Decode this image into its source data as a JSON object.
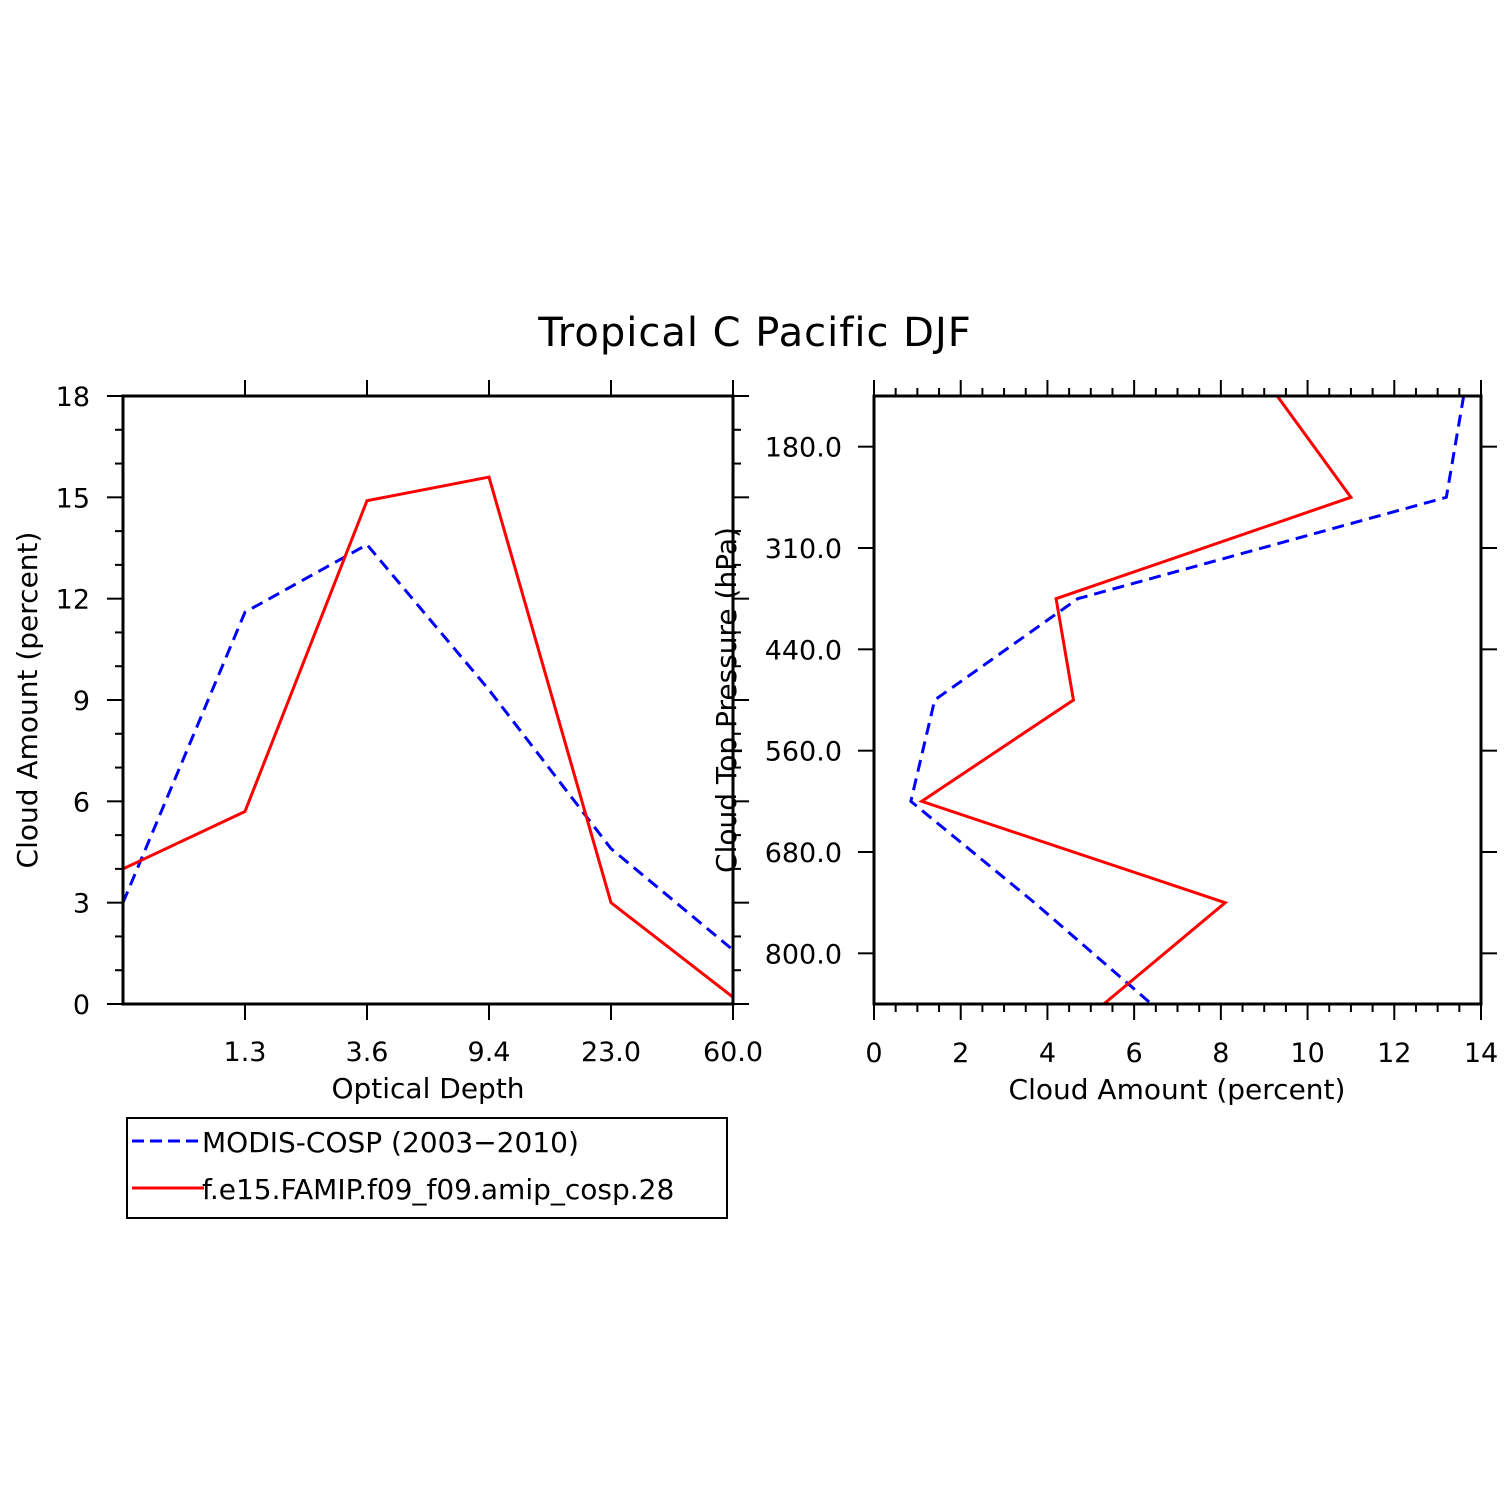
{
  "title": "Tropical C Pacific DJF",
  "colors": {
    "obs": "#0000ff",
    "model": "#ff0000",
    "axis": "#000000"
  },
  "chart_data": [
    {
      "type": "line",
      "xlabel": "Optical Depth",
      "ylabel": "Cloud Amount (percent)",
      "x_tick_labels": [
        "1.3",
        "3.6",
        "9.4",
        "23.0",
        "60.0"
      ],
      "y_tick_labels": [
        "0",
        "3",
        "6",
        "9",
        "12",
        "15",
        "18"
      ],
      "ylim": [
        0,
        18
      ],
      "x_bins": [
        0,
        1,
        2,
        3,
        4,
        5
      ],
      "series": [
        {
          "name": "MODIS-COSP (2003-2010)",
          "style": "dashed",
          "color": "obs",
          "values": [
            3.0,
            11.6,
            13.6,
            9.3,
            4.6,
            1.6
          ]
        },
        {
          "name": "f.e15.FAMIP.f09_f09.amip_cosp.28",
          "style": "solid",
          "color": "model",
          "values": [
            4.0,
            5.7,
            14.9,
            15.6,
            3.0,
            0.2
          ]
        }
      ]
    },
    {
      "type": "line",
      "xlabel": "Cloud Amount (percent)",
      "ylabel": "Cloud Top Pressure (hPa)",
      "x_tick_labels": [
        "0",
        "2",
        "4",
        "6",
        "8",
        "10",
        "12",
        "14"
      ],
      "y_tick_labels": [
        "180.0",
        "310.0",
        "440.0",
        "560.0",
        "680.0",
        "800.0"
      ],
      "xlim": [
        0,
        14
      ],
      "pressure_levels": [
        "top",
        "180.0",
        "310.0",
        "440.0",
        "560.0",
        "680.0",
        "800.0",
        "bottom"
      ],
      "series": [
        {
          "name": "MODIS-COSP (2003-2010)",
          "style": "dashed",
          "color": "obs",
          "values": [
            13.6,
            13.2,
            4.7,
            1.4,
            0.85,
            3.7,
            6.4
          ]
        },
        {
          "name": "f.e15.FAMIP.f09_f09.amip_cosp.28",
          "style": "solid",
          "color": "model",
          "values": [
            9.3,
            11.0,
            4.2,
            4.6,
            1.1,
            8.1,
            5.3
          ]
        }
      ]
    }
  ],
  "legend": {
    "entries": [
      {
        "label": "MODIS-COSP (2003−2010)",
        "style": "dashed",
        "color": "obs"
      },
      {
        "label": "f.e15.FAMIP.f09_f09.amip_cosp.28",
        "style": "solid",
        "color": "model"
      }
    ]
  }
}
